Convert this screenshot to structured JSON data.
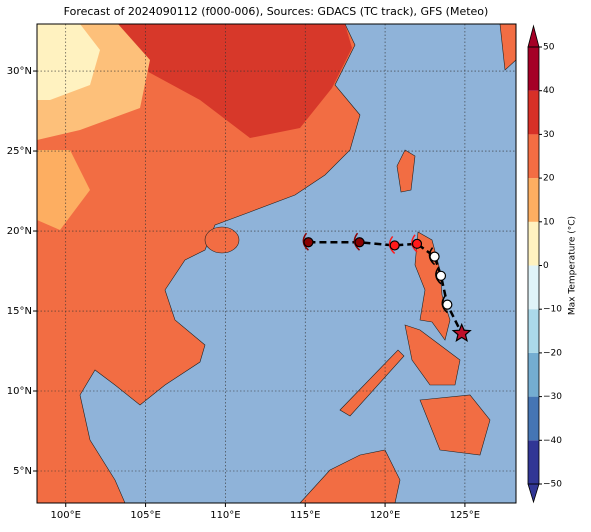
{
  "chart_data": {
    "type": "map",
    "title": "Forecast of 2024090112 (f000-006), Sources: GDACS (TC track), GFS (Meteo)",
    "xlim": [
      98.2,
      128.2
    ],
    "ylim": [
      3,
      32.94
    ],
    "xticks": [
      {
        "value": 100,
        "label": "100°E"
      },
      {
        "value": 105,
        "label": "105°E"
      },
      {
        "value": 110,
        "label": "110°E"
      },
      {
        "value": 115,
        "label": "115°E"
      },
      {
        "value": 120,
        "label": "120°E"
      },
      {
        "value": 125,
        "label": "125°E"
      }
    ],
    "yticks": [
      {
        "value": 5,
        "label": "5°N"
      },
      {
        "value": 10,
        "label": "10°N"
      },
      {
        "value": 15,
        "label": "15°N"
      },
      {
        "value": 20,
        "label": "20°N"
      },
      {
        "value": 25,
        "label": "25°N"
      },
      {
        "value": 30,
        "label": "30°N"
      }
    ],
    "grid": true,
    "track": {
      "lon": [
        115.2,
        118.4,
        120.6,
        122.0,
        123.1,
        123.5,
        123.9,
        124.8
      ],
      "lat": [
        19.3,
        19.3,
        19.1,
        19.2,
        18.4,
        17.2,
        15.4,
        13.6
      ],
      "colors": [
        "#8b0000",
        "#8b0000",
        "#ff1a1a",
        "#ff1a1a",
        "#ffffff",
        "#ffffff",
        "#ffffff",
        "#c0102a"
      ]
    },
    "colorbar": {
      "label": "Max Temperature (°C)",
      "lim": [
        -50,
        50
      ],
      "ticks": [
        {
          "value": -50,
          "label": "−50"
        },
        {
          "value": -40,
          "label": "−40"
        },
        {
          "value": -30,
          "label": "−30"
        },
        {
          "value": -20,
          "label": "−20"
        },
        {
          "value": -10,
          "label": "−10"
        },
        0,
        10,
        20,
        30,
        40,
        50
      ],
      "colors": [
        "#313695",
        "#4575b4",
        "#74add1",
        "#abd9e9",
        "#e0f3f8",
        "#fff2c0",
        "#fdae61",
        "#f46d43",
        "#d73027",
        "#a50026"
      ]
    }
  }
}
